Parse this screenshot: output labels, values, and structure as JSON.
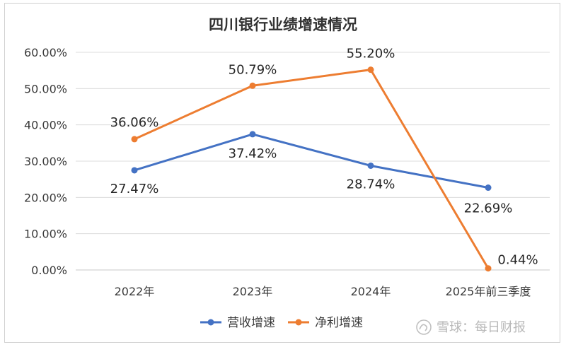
{
  "chart_data": {
    "type": "line",
    "title": "四川银行业绩增速情况",
    "categories": [
      "2022年",
      "2023年",
      "2024年",
      "2025年前三季度"
    ],
    "ylim": [
      0,
      60
    ],
    "yticks": [
      "0.00%",
      "10.00%",
      "20.00%",
      "30.00%",
      "40.00%",
      "50.00%",
      "60.00%"
    ],
    "grid": true,
    "legend_position": "bottom",
    "series": [
      {
        "name": "营收增速",
        "color": "#4472C4",
        "values": [
          27.47,
          37.42,
          28.74,
          22.69
        ],
        "labels": [
          "27.47%",
          "37.42%",
          "28.74%",
          "22.69%"
        ]
      },
      {
        "name": "净利增速",
        "color": "#ED7D31",
        "values": [
          36.06,
          50.79,
          55.2,
          0.44
        ],
        "labels": [
          "36.06%",
          "50.79%",
          "55.20%",
          "0.44%"
        ]
      }
    ]
  },
  "watermark": {
    "icon": "snowball-icon",
    "text": "雪球：每日财报"
  }
}
